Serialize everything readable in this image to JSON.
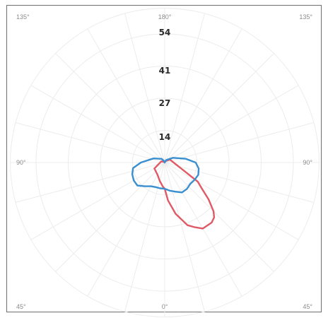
{
  "chart_data": {
    "type": "polar-line",
    "title": "",
    "angle_labels": {
      "top": "180°",
      "top_left": "135°",
      "top_right": "135°",
      "left": "90°",
      "right": "90°",
      "bottom": "0°",
      "bottom_left": "45°",
      "bottom_right": "45°"
    },
    "radial_ticks": [
      "14",
      "27",
      "41",
      "54"
    ],
    "radial_max": 54,
    "series": [
      {
        "color": "#e05a65",
        "points": [
          {
            "angle": 180,
            "r": 0
          },
          {
            "angle": 160,
            "r": 0.6
          },
          {
            "angle": 120,
            "r": 2.5
          },
          {
            "angle": 60,
            "r": 16
          },
          {
            "angle": 55,
            "r": 19
          },
          {
            "angle": 50,
            "r": 24
          },
          {
            "angle": 45,
            "r": 29
          },
          {
            "angle": 42,
            "r": 31
          },
          {
            "angle": 38,
            "r": 32
          },
          {
            "angle": 30,
            "r": 32
          },
          {
            "angle": 25,
            "r": 30
          },
          {
            "angle": 20,
            "r": 28
          },
          {
            "angle": 12,
            "r": 22
          },
          {
            "angle": 5,
            "r": 16
          },
          {
            "angle": 0,
            "r": 11
          },
          {
            "angle": -5,
            "r": 10
          },
          {
            "angle": -15,
            "r": 8
          },
          {
            "angle": -30,
            "r": 6
          },
          {
            "angle": -60,
            "r": 5
          },
          {
            "angle": -110,
            "r": 1.5
          },
          {
            "angle": -170,
            "r": 0.2
          }
        ]
      },
      {
        "color": "#3a8fd0",
        "points": [
          {
            "angle": 180,
            "r": 0
          },
          {
            "angle": 150,
            "r": 1.2
          },
          {
            "angle": 120,
            "r": 4
          },
          {
            "angle": 100,
            "r": 9
          },
          {
            "angle": 90,
            "r": 13
          },
          {
            "angle": 80,
            "r": 14.5
          },
          {
            "angle": 70,
            "r": 15
          },
          {
            "angle": 60,
            "r": 14.5
          },
          {
            "angle": 50,
            "r": 14
          },
          {
            "angle": 40,
            "r": 14.5
          },
          {
            "angle": 30,
            "r": 14.5
          },
          {
            "angle": 20,
            "r": 13
          },
          {
            "angle": 10,
            "r": 12
          },
          {
            "angle": 0,
            "r": 11
          },
          {
            "angle": -10,
            "r": 11
          },
          {
            "angle": -20,
            "r": 11
          },
          {
            "angle": -30,
            "r": 11.5
          },
          {
            "angle": -40,
            "r": 13
          },
          {
            "angle": -50,
            "r": 15
          },
          {
            "angle": -60,
            "r": 15
          },
          {
            "angle": -70,
            "r": 14.5
          },
          {
            "angle": -80,
            "r": 13.5
          },
          {
            "angle": -90,
            "r": 10
          },
          {
            "angle": -110,
            "r": 5
          },
          {
            "angle": -140,
            "r": 2
          },
          {
            "angle": -165,
            "r": 0.5
          }
        ]
      }
    ]
  }
}
